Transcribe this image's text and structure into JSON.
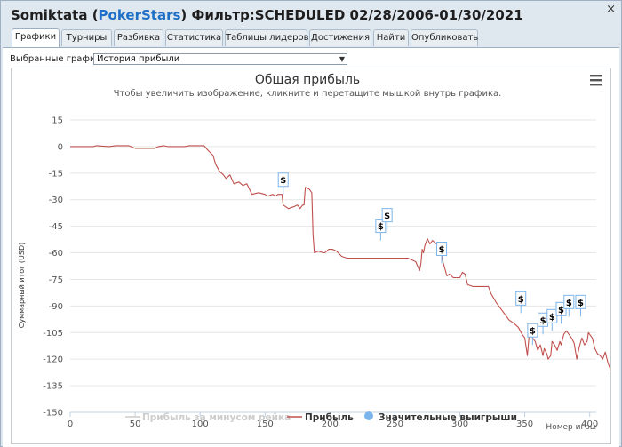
{
  "window": {
    "player": "Somiktata",
    "site": "PokerStars",
    "filter_text": "Фильтр:SCHEDULED 02/28/2006-01/30/2021",
    "close_glyph": "×"
  },
  "tabs": [
    {
      "label": "Графики",
      "active": true
    },
    {
      "label": "Турниры",
      "active": false
    },
    {
      "label": "Разбивка",
      "active": false
    },
    {
      "label": "Статистика",
      "active": false
    },
    {
      "label": "Таблицы лидеров",
      "active": false
    },
    {
      "label": "Достижения",
      "active": false
    },
    {
      "label": "Найти",
      "active": false
    },
    {
      "label": "Опубликовать",
      "active": false
    }
  ],
  "chart_select": {
    "label": "Выбранные графики:",
    "value": "История прибыли"
  },
  "chart_data": {
    "type": "line",
    "title": "Общая прибыль",
    "subtitle": "Чтобы увеличить изображение, кликните и перетащите мышкой внутрь графика.",
    "xlabel": "Номер игры",
    "ylabel": "Суммарный итог (USD)",
    "xlim": [
      0,
      405
    ],
    "ylim": [
      -150,
      15
    ],
    "x_ticks": [
      0,
      50,
      100,
      150,
      200,
      250,
      300,
      350,
      400
    ],
    "y_ticks": [
      15,
      0,
      -15,
      -30,
      -45,
      -60,
      -75,
      -90,
      -105,
      -120,
      -135,
      -150
    ],
    "colors": {
      "profit": "#c0504d",
      "rake": "#cccccc",
      "marker": "#7cb5ec",
      "axis": "#c0d0e0"
    },
    "legend": [
      {
        "name": "Прибыль за минусом рейка",
        "type": "line",
        "enabled": false
      },
      {
        "name": "Прибыль",
        "type": "line",
        "enabled": true
      },
      {
        "name": "Значительные выигрыши",
        "type": "marker",
        "enabled": true
      }
    ],
    "series": [
      {
        "name": "Прибыль",
        "points": [
          [
            0,
            0
          ],
          [
            18,
            0
          ],
          [
            20,
            0.5
          ],
          [
            30,
            0
          ],
          [
            35,
            0.5
          ],
          [
            45,
            0.5
          ],
          [
            50,
            -1
          ],
          [
            55,
            -1
          ],
          [
            65,
            -1
          ],
          [
            68,
            0
          ],
          [
            72,
            0.5
          ],
          [
            75,
            0
          ],
          [
            80,
            0
          ],
          [
            88,
            0
          ],
          [
            92,
            0.5
          ],
          [
            103,
            0.5
          ],
          [
            106,
            -2
          ],
          [
            110,
            -5
          ],
          [
            112,
            -10
          ],
          [
            115,
            -14
          ],
          [
            118,
            -16
          ],
          [
            120,
            -18
          ],
          [
            123,
            -16
          ],
          [
            126,
            -21
          ],
          [
            130,
            -20
          ],
          [
            133,
            -22
          ],
          [
            136,
            -21
          ],
          [
            140,
            -27
          ],
          [
            145,
            -26
          ],
          [
            150,
            -27
          ],
          [
            152,
            -28
          ],
          [
            156,
            -27
          ],
          [
            158,
            -28
          ],
          [
            160,
            -27
          ],
          [
            163,
            -27
          ],
          [
            164,
            -33
          ],
          [
            168,
            -35
          ],
          [
            172,
            -34
          ],
          [
            175,
            -33
          ],
          [
            177,
            -35
          ],
          [
            179,
            -33
          ],
          [
            180,
            -33
          ],
          [
            181,
            -23
          ],
          [
            184,
            -24
          ],
          [
            186,
            -26
          ],
          [
            187,
            -50
          ],
          [
            188,
            -60
          ],
          [
            191,
            -59
          ],
          [
            195,
            -60
          ],
          [
            196,
            -60
          ],
          [
            199,
            -58
          ],
          [
            202,
            -58
          ],
          [
            205,
            -59
          ],
          [
            209,
            -62
          ],
          [
            213,
            -63
          ],
          [
            220,
            -63
          ],
          [
            260,
            -63
          ],
          [
            266,
            -65
          ],
          [
            269,
            -70
          ],
          [
            270,
            -66
          ],
          [
            271,
            -58
          ],
          [
            272,
            -60
          ],
          [
            273,
            -56
          ],
          [
            275,
            -52
          ],
          [
            277,
            -55
          ],
          [
            279,
            -53
          ],
          [
            282,
            -55
          ],
          [
            285,
            -58
          ],
          [
            287,
            -65
          ],
          [
            290,
            -73
          ],
          [
            292,
            -72
          ],
          [
            295,
            -74
          ],
          [
            300,
            -74
          ],
          [
            302,
            -71
          ],
          [
            304,
            -72
          ],
          [
            306,
            -78
          ],
          [
            310,
            -79
          ],
          [
            322,
            -79
          ],
          [
            324,
            -83
          ],
          [
            328,
            -88
          ],
          [
            332,
            -92
          ],
          [
            336,
            -96
          ],
          [
            338,
            -98
          ],
          [
            342,
            -100
          ],
          [
            345,
            -102
          ],
          [
            348,
            -106
          ],
          [
            350,
            -108
          ],
          [
            352,
            -118
          ],
          [
            354,
            -101
          ],
          [
            356,
            -108
          ],
          [
            358,
            -110
          ],
          [
            360,
            -115
          ],
          [
            362,
            -112
          ],
          [
            364,
            -118
          ],
          [
            365,
            -114
          ],
          [
            367,
            -117
          ],
          [
            368,
            -120
          ],
          [
            370,
            -118
          ],
          [
            371,
            -110
          ],
          [
            373,
            -112
          ],
          [
            375,
            -115
          ],
          [
            377,
            -110
          ],
          [
            378,
            -112
          ],
          [
            380,
            -106
          ],
          [
            382,
            -104
          ],
          [
            384,
            -106
          ],
          [
            386,
            -108
          ],
          [
            388,
            -111
          ],
          [
            390,
            -120
          ],
          [
            392,
            -113
          ],
          [
            394,
            -108
          ],
          [
            396,
            -112
          ],
          [
            398,
            -110
          ],
          [
            399,
            -105
          ],
          [
            402,
            -108
          ],
          [
            404,
            -114
          ],
          [
            406,
            -117
          ],
          [
            408,
            -118
          ],
          [
            410,
            -120
          ],
          [
            412,
            -116
          ],
          [
            414,
            -122
          ],
          [
            416,
            -126
          ],
          [
            418,
            -130
          ],
          [
            420,
            -134
          ],
          [
            422,
            -135
          ],
          [
            424,
            -132
          ],
          [
            426,
            -133
          ],
          [
            427,
            -132
          ]
        ]
      },
      {
        "name": "Значительные выигрыши",
        "label": "$",
        "points": [
          [
            164,
            -27
          ],
          [
            239,
            -53
          ],
          [
            244,
            -47
          ],
          [
            286,
            -66
          ],
          [
            347,
            -94
          ],
          [
            356,
            -112
          ],
          [
            364,
            -106
          ],
          [
            371,
            -104
          ],
          [
            378,
            -100
          ],
          [
            384,
            -96
          ],
          [
            393,
            -96
          ]
        ]
      }
    ]
  }
}
